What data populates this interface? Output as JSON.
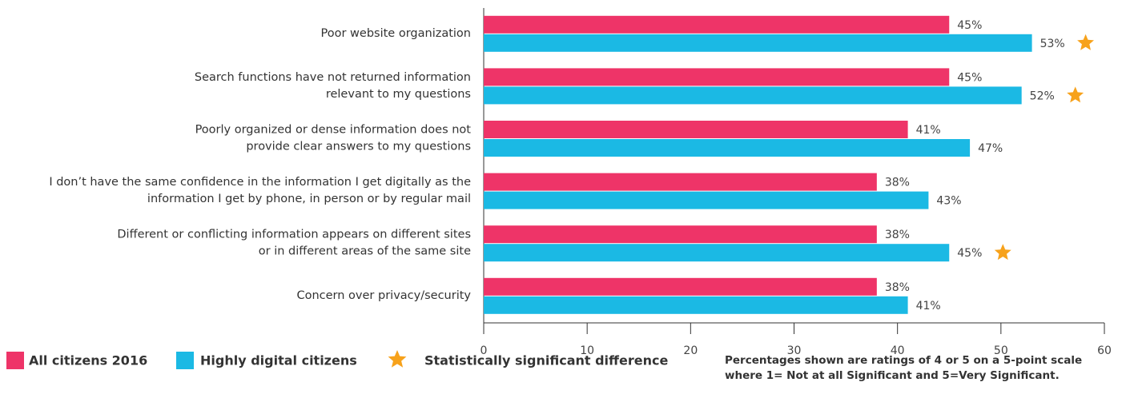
{
  "chart_data": {
    "type": "barh",
    "categories": [
      [
        "Poor website organization"
      ],
      [
        "Search functions have not returned information",
        "relevant to my questions"
      ],
      [
        "Poorly organized or dense information does not",
        "provide clear answers to my questions"
      ],
      [
        "I don’t have the same confidence in the information I get digitally as the",
        "information I get by phone, in person or by regular mail"
      ],
      [
        "Different or conflicting information appears on different sites",
        "or in different areas of the same site"
      ],
      [
        "Concern over privacy/security"
      ]
    ],
    "series": [
      {
        "name": "All citizens 2016",
        "color": "#ee3468",
        "values": [
          45,
          45,
          41,
          38,
          38,
          38
        ],
        "value_labels": [
          "45%",
          "45%",
          "41%",
          "38%",
          "38%",
          "38%"
        ]
      },
      {
        "name": "Highly digital citizens",
        "color": "#1bb9e4",
        "values": [
          53,
          52,
          47,
          43,
          45,
          41
        ],
        "value_labels": [
          "53%",
          "52%",
          "47%",
          "43%",
          "45%",
          "41%"
        ]
      }
    ],
    "significant": [
      true,
      true,
      false,
      false,
      true,
      false
    ],
    "significance_label": "Statistically significant difference",
    "significance_color": "#f7a21b",
    "note": [
      "Percentages shown are ratings of 4 or 5 on a 5-point scale",
      "where 1= Not at all Significant and 5=Very Significant."
    ],
    "xlim": [
      0,
      60
    ],
    "xticks": [
      0,
      10,
      20,
      30,
      40,
      50,
      60
    ]
  }
}
